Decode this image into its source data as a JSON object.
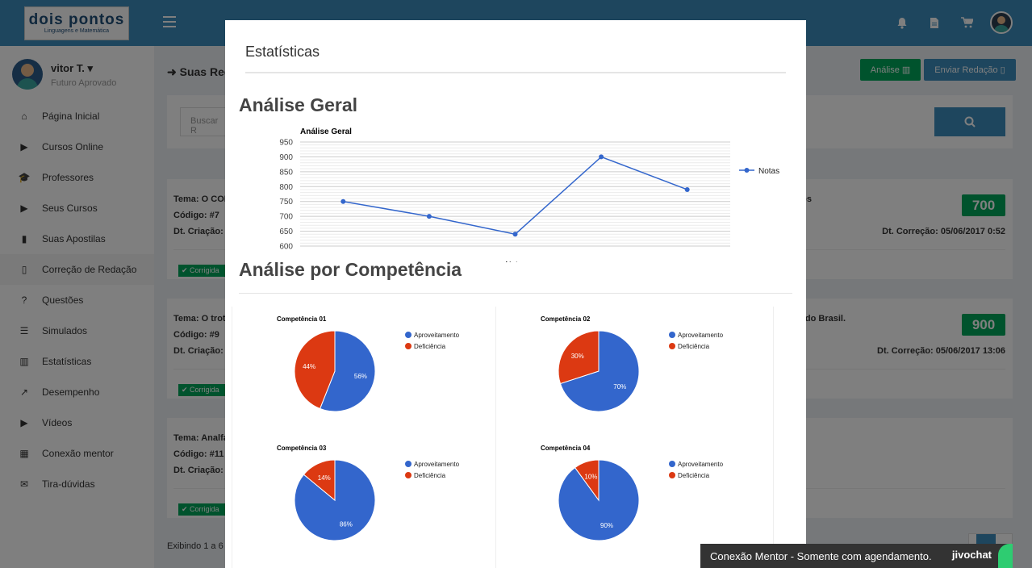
{
  "topbar": {
    "logo_main": "dois pontos",
    "logo_sub": "Linguagens e Matemática"
  },
  "user": {
    "name": "vitor T. ▾",
    "role": "Futuro Aprovado"
  },
  "menu": [
    {
      "label": "Página Inicial",
      "icon": "home-icon",
      "glyph": "⌂"
    },
    {
      "label": "Cursos Online",
      "icon": "play-circle-icon",
      "glyph": "▶"
    },
    {
      "label": "Professores",
      "icon": "graduation-cap-icon",
      "glyph": "🎓"
    },
    {
      "label": "Seus Cursos",
      "icon": "play-icon",
      "glyph": "▶"
    },
    {
      "label": "Suas Apostilas",
      "icon": "book-icon",
      "glyph": "▮"
    },
    {
      "label": "Correção de Redação",
      "icon": "file-icon",
      "glyph": "▯"
    },
    {
      "label": "Questões",
      "icon": "question-icon",
      "glyph": "?"
    },
    {
      "label": "Simulados",
      "icon": "list-icon",
      "glyph": "☰"
    },
    {
      "label": "Estatísticas",
      "icon": "bar-chart-icon",
      "glyph": "▥"
    },
    {
      "label": "Desempenho",
      "icon": "line-chart-icon",
      "glyph": "↗"
    },
    {
      "label": "Vídeos",
      "icon": "play-circle-icon",
      "glyph": "▶"
    },
    {
      "label": "Conexão mentor",
      "icon": "calendar-icon",
      "glyph": "▦"
    },
    {
      "label": "Tira-dúvidas",
      "icon": "comments-icon",
      "glyph": "✉"
    }
  ],
  "page": {
    "title": "Suas Red",
    "btn_analise": "Análise ▥",
    "btn_enviar": "Enviar Redação ▯",
    "search_placeholder": "Buscar R",
    "footer": "Exibindo 1 a 6",
    "current_page": "1"
  },
  "cards": [
    {
      "tema": "Tema: O CON",
      "tema_tail": "ros",
      "codigo": "Código: #7",
      "criacao": "Dt. Criação: (",
      "correcao": "Dt. Correção: 05/06/2017 0:52",
      "grade": "700",
      "status": "✔ Corrigida"
    },
    {
      "tema": "Tema: O trote",
      "tema_tail": "do Brasil.",
      "codigo": "Código: #9",
      "criacao": "Dt. Criação: (",
      "correcao": "Dt. Correção: 05/06/2017 13:06",
      "grade": "900",
      "status": "✔ Corrigida"
    },
    {
      "tema": "Tema: Analfa",
      "tema_tail": "",
      "codigo": "Código: #11",
      "criacao": "Dt. Criação: (",
      "correcao": "",
      "grade": "",
      "status": "✔ Corrigida"
    }
  ],
  "modal": {
    "title": "Estatísticas",
    "section1": "Análise Geral",
    "section2": "Análise por Competência"
  },
  "chart_data": [
    {
      "type": "line",
      "title": "Análise Geral",
      "xlabel": "Notas",
      "ylabel": "",
      "x": [
        1,
        2,
        3,
        4,
        5
      ],
      "series": [
        {
          "name": "Notas",
          "values": [
            750,
            700,
            640,
            900,
            790
          ],
          "color": "#3366cc"
        }
      ],
      "ylim": [
        600,
        950
      ],
      "yticks": [
        950,
        900,
        850,
        800,
        750,
        700,
        650,
        600
      ],
      "grid": true,
      "legend": "right"
    },
    {
      "type": "pie",
      "title": "Competência 01",
      "labels": [
        "Aproveitamento",
        "Deficiência"
      ],
      "values": [
        56,
        44
      ],
      "colors": [
        "#3366cc",
        "#dc3912"
      ],
      "legend": "right"
    },
    {
      "type": "pie",
      "title": "Competência 02",
      "labels": [
        "Aproveitamento",
        "Deficiência"
      ],
      "values": [
        70,
        30
      ],
      "colors": [
        "#3366cc",
        "#dc3912"
      ],
      "legend": "right"
    },
    {
      "type": "pie",
      "title": "Competência 03",
      "labels": [
        "Aproveitamento",
        "Deficiência"
      ],
      "values": [
        86,
        14
      ],
      "colors": [
        "#3366cc",
        "#dc3912"
      ],
      "legend": "right"
    },
    {
      "type": "pie",
      "title": "Competência 04",
      "labels": [
        "Aproveitamento",
        "Deficiência"
      ],
      "values": [
        90,
        10
      ],
      "colors": [
        "#3366cc",
        "#dc3912"
      ],
      "legend": "right"
    }
  ],
  "chat": {
    "text": "Conexão Mentor - Somente com agendamento.",
    "brand": "jivochat"
  }
}
